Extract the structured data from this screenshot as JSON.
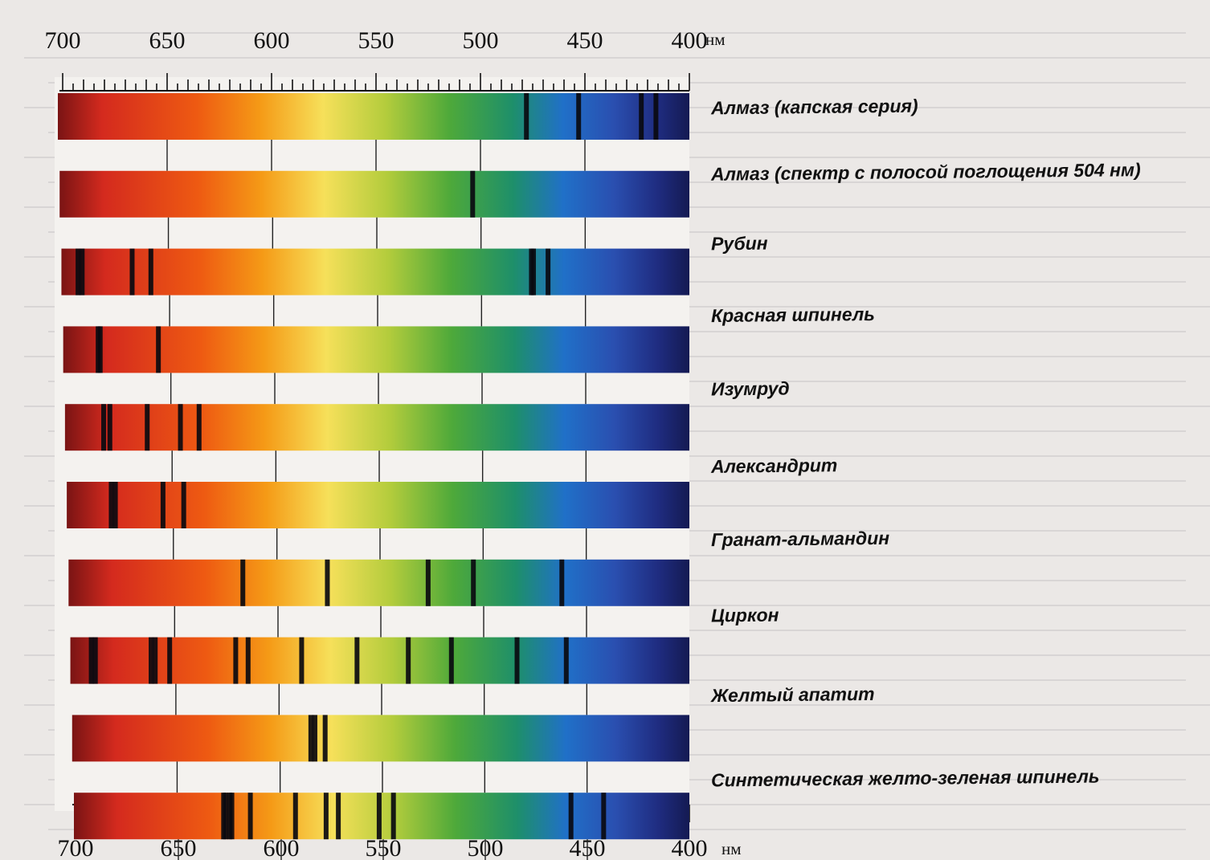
{
  "scale_top": {
    "ticks": [
      "700",
      "650",
      "600",
      "550",
      "500",
      "450",
      "400"
    ],
    "unit": "нм"
  },
  "scale_bottom": {
    "ticks": [
      "700",
      "650",
      "600",
      "550",
      "500",
      "450",
      "400"
    ],
    "unit": "нм"
  },
  "spectra": [
    {
      "label": "Алмаз (капская серия)",
      "lines_nm": [
        478,
        453,
        423,
        416
      ]
    },
    {
      "label": "Алмаз (спектр с полосой поглощения 504 нм)",
      "lines_nm": [
        504
      ]
    },
    {
      "label": "Рубин",
      "lines_nm": [
        694,
        692,
        668,
        659,
        476,
        475,
        468
      ]
    },
    {
      "label": "Красная шпинель",
      "lines_nm": [
        685,
        684,
        656
      ]
    },
    {
      "label": "Изумруд",
      "lines_nm": [
        683,
        680,
        662,
        646,
        637
      ]
    },
    {
      "label": "Александрит",
      "lines_nm": [
        680,
        678,
        655,
        645
      ]
    },
    {
      "label": "Гранат-альмандин",
      "lines_nm": [
        617,
        576,
        527,
        505,
        462
      ]
    },
    {
      "label": "Циркон",
      "lines_nm": [
        691,
        689,
        662,
        660,
        653,
        621,
        615,
        589,
        562,
        537,
        516,
        484,
        460
      ]
    },
    {
      "label": "Желтый апатит",
      "lines_nm": [
        585,
        583,
        578
      ]
    },
    {
      "label": "Синтетическая желто-зеленая шпинель",
      "lines_nm": [
        628,
        627,
        625,
        624,
        615,
        593,
        578,
        572,
        552,
        545,
        458,
        442
      ]
    }
  ]
}
